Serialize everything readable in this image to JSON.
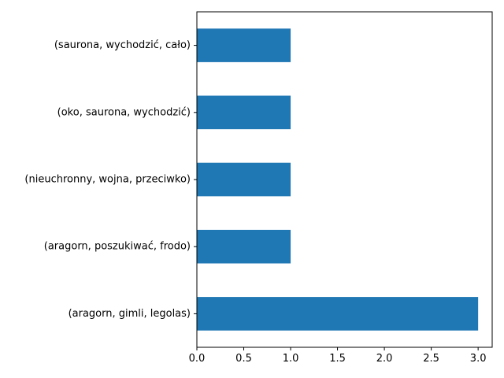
{
  "chart_data": {
    "type": "bar",
    "orientation": "horizontal",
    "title": "",
    "xlabel": "",
    "ylabel": "",
    "categories": [
      "(aragorn, gimli, legolas)",
      "(aragorn, poszukiwać, frodo)",
      "(nieuchronny, wojna, przeciwko)",
      "(oko, saurona, wychodzić)",
      "(saurona, wychodzić, cało)"
    ],
    "values": [
      3,
      1,
      1,
      1,
      1
    ],
    "xlim": [
      0,
      3.15
    ],
    "xticks": [
      0.0,
      0.5,
      1.0,
      1.5,
      2.0,
      2.5,
      3.0
    ],
    "xtick_labels": [
      "0.0",
      "0.5",
      "1.0",
      "1.5",
      "2.0",
      "2.5",
      "3.0"
    ],
    "bar_color": "#1f77b4",
    "grid": false,
    "legend": "none"
  }
}
